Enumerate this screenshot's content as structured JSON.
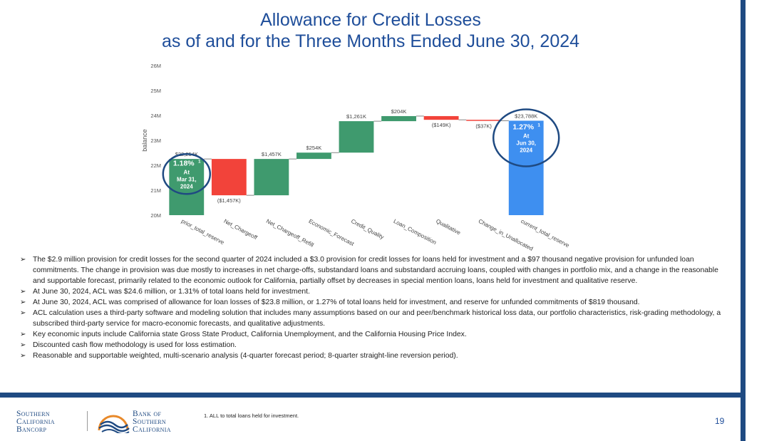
{
  "title_line1": "Allowance for Credit Losses",
  "title_line2": "as of and for the Three Months Ended June 30, 2024",
  "chart_data": {
    "type": "waterfall",
    "ylabel": "balance",
    "ylim": [
      20,
      26
    ],
    "yticks": [
      20,
      21,
      22,
      23,
      24,
      25,
      26
    ],
    "ytick_labels": [
      "20M",
      "21M",
      "22M",
      "23M",
      "24M",
      "25M",
      "26M"
    ],
    "categories": [
      "prior_total_reserve",
      "Net_Chargeoff",
      "Net_Chargeoff_Refill",
      "Economic_Forecast",
      "Credit_Quality",
      "Loan_Composition",
      "Qualitative",
      "Change_in_Unallocated",
      "current_total_reserve"
    ],
    "values": [
      22.254,
      -1.457,
      1.457,
      0.254,
      1.261,
      0.204,
      -0.149,
      -0.037,
      23.788
    ],
    "measures": [
      "absolute",
      "relative",
      "relative",
      "relative",
      "relative",
      "relative",
      "relative",
      "relative",
      "total"
    ],
    "data_labels": [
      "$22,254K",
      "($1,457K)",
      "$1,457K",
      "$254K",
      "$1,261K",
      "$204K",
      "($149K)",
      "($37K)",
      "$23,788K"
    ],
    "colors": {
      "increase": "#3f9a6e",
      "decrease": "#f2433a",
      "total": "#3e8ff0"
    },
    "callouts": [
      {
        "pct": "1.18%",
        "sup": "1",
        "line1": "At",
        "line2": "Mar 31,",
        "line3": "2024"
      },
      {
        "pct": "1.27%",
        "sup": "1",
        "line1": "At",
        "line2": "Jun 30,",
        "line3": "2024"
      }
    ]
  },
  "bullets": [
    "The $2.9 million provision for credit losses for the second quarter of 2024 included a $3.0 provision for credit losses for loans held for investment and a $97 thousand negative provision for unfunded loan commitments.  The change in provision was due mostly to increases in net charge-offs, substandard loans and substandard accruing loans, coupled with changes in portfolio mix, and a change in the reasonable and supportable forecast, primarily related to the economic outlook for California, partially offset by decreases in special mention loans, loans held for investment and qualitative reserve.",
    "At June 30, 2024, ACL was $24.6 million, or 1.31% of total loans held for investment.",
    "At June 30, 2024,  ACL was comprised of allowance for loan losses of $23.8 million, or 1.27% of total loans held for investment, and reserve for unfunded commitments of $819 thousand.",
    "ACL calculation uses a third-party software and modeling solution that includes many assumptions based on our and peer/benchmark historical loss data, our portfolio characteristics, risk-grading methodology, a subscribed third-party service for macro-economic forecasts, and qualitative adjustments.",
    "Key economic inputs include California state Gross State Product, California Unemployment, and the California Housing Price Index.",
    "Discounted cash flow methodology is used for loss estimation.",
    "Reasonable and supportable weighted, multi-scenario analysis (4-quarter forecast period; 8-quarter straight-line reversion period)."
  ],
  "footnote": "1.      ALL to total loans held for investment.",
  "page_number": "19",
  "logo_left": {
    "line1": "Southern",
    "line2": "California",
    "line3": "Bancorp"
  },
  "logo_right": {
    "line1": "Bank of",
    "line2": "Southern",
    "line3": "California"
  },
  "brand_colors": {
    "navy": "#1f4a82",
    "title": "#1f4e9a",
    "orange": "#e8892a"
  }
}
